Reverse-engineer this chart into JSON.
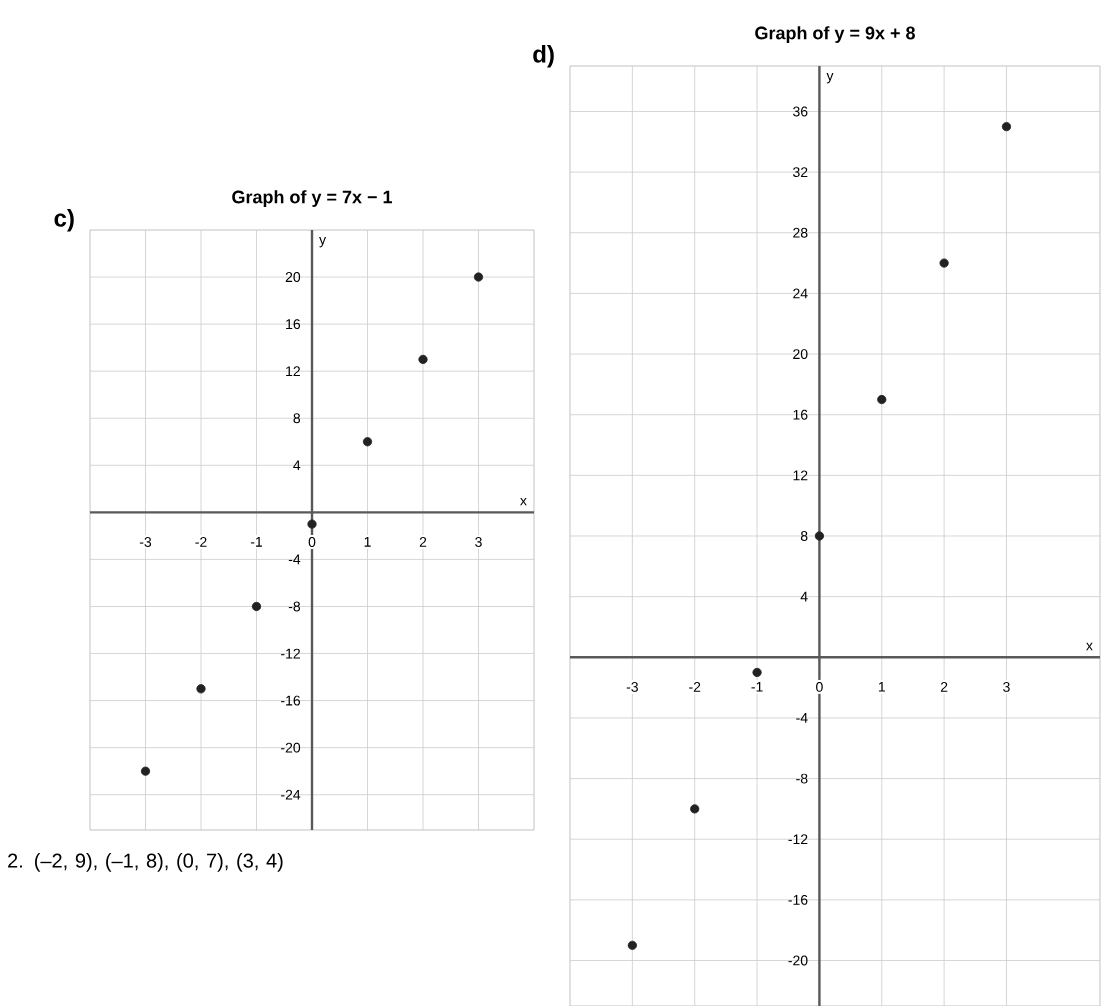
{
  "chart_data": [
    {
      "type": "scatter",
      "title": "Graph of y = 7x − 1",
      "xlabel": "x",
      "ylabel": "y",
      "x": [
        -3,
        -2,
        -1,
        0,
        1,
        2,
        3
      ],
      "series": [
        {
          "color": "#222222",
          "values": [
            -22,
            -15,
            -8,
            -1,
            6,
            13,
            20
          ]
        }
      ],
      "xlim": [
        -4,
        4
      ],
      "ylim": [
        -27,
        24
      ],
      "xticks": [
        -3,
        -2,
        -1,
        0,
        1,
        2,
        3
      ],
      "yticks": [
        -24,
        -20,
        -16,
        -12,
        -8,
        -4,
        4,
        8,
        12,
        16,
        20
      ],
      "grid": true,
      "marker": "circle",
      "annotations": [
        "c)",
        "2. (–2, 9), (–1, 8), (0, 7), (3, 4)"
      ]
    },
    {
      "type": "scatter",
      "title": "Graph of y = 9x + 8",
      "xlabel": "x",
      "ylabel": "y",
      "x": [
        -3,
        -2,
        -1,
        0,
        1,
        2,
        3
      ],
      "series": [
        {
          "color": "#222222",
          "values": [
            -19,
            -10,
            -1,
            8,
            17,
            26,
            35
          ]
        }
      ],
      "xlim": [
        -4,
        4.5
      ],
      "ylim": [
        -23,
        39
      ],
      "xticks": [
        -3,
        -2,
        -1,
        0,
        1,
        2,
        3
      ],
      "yticks": [
        -20,
        -16,
        -12,
        -8,
        -4,
        4,
        8,
        12,
        16,
        20,
        24,
        28,
        32,
        36
      ],
      "grid": true,
      "marker": "circle",
      "annotations": [
        "d)"
      ]
    }
  ]
}
